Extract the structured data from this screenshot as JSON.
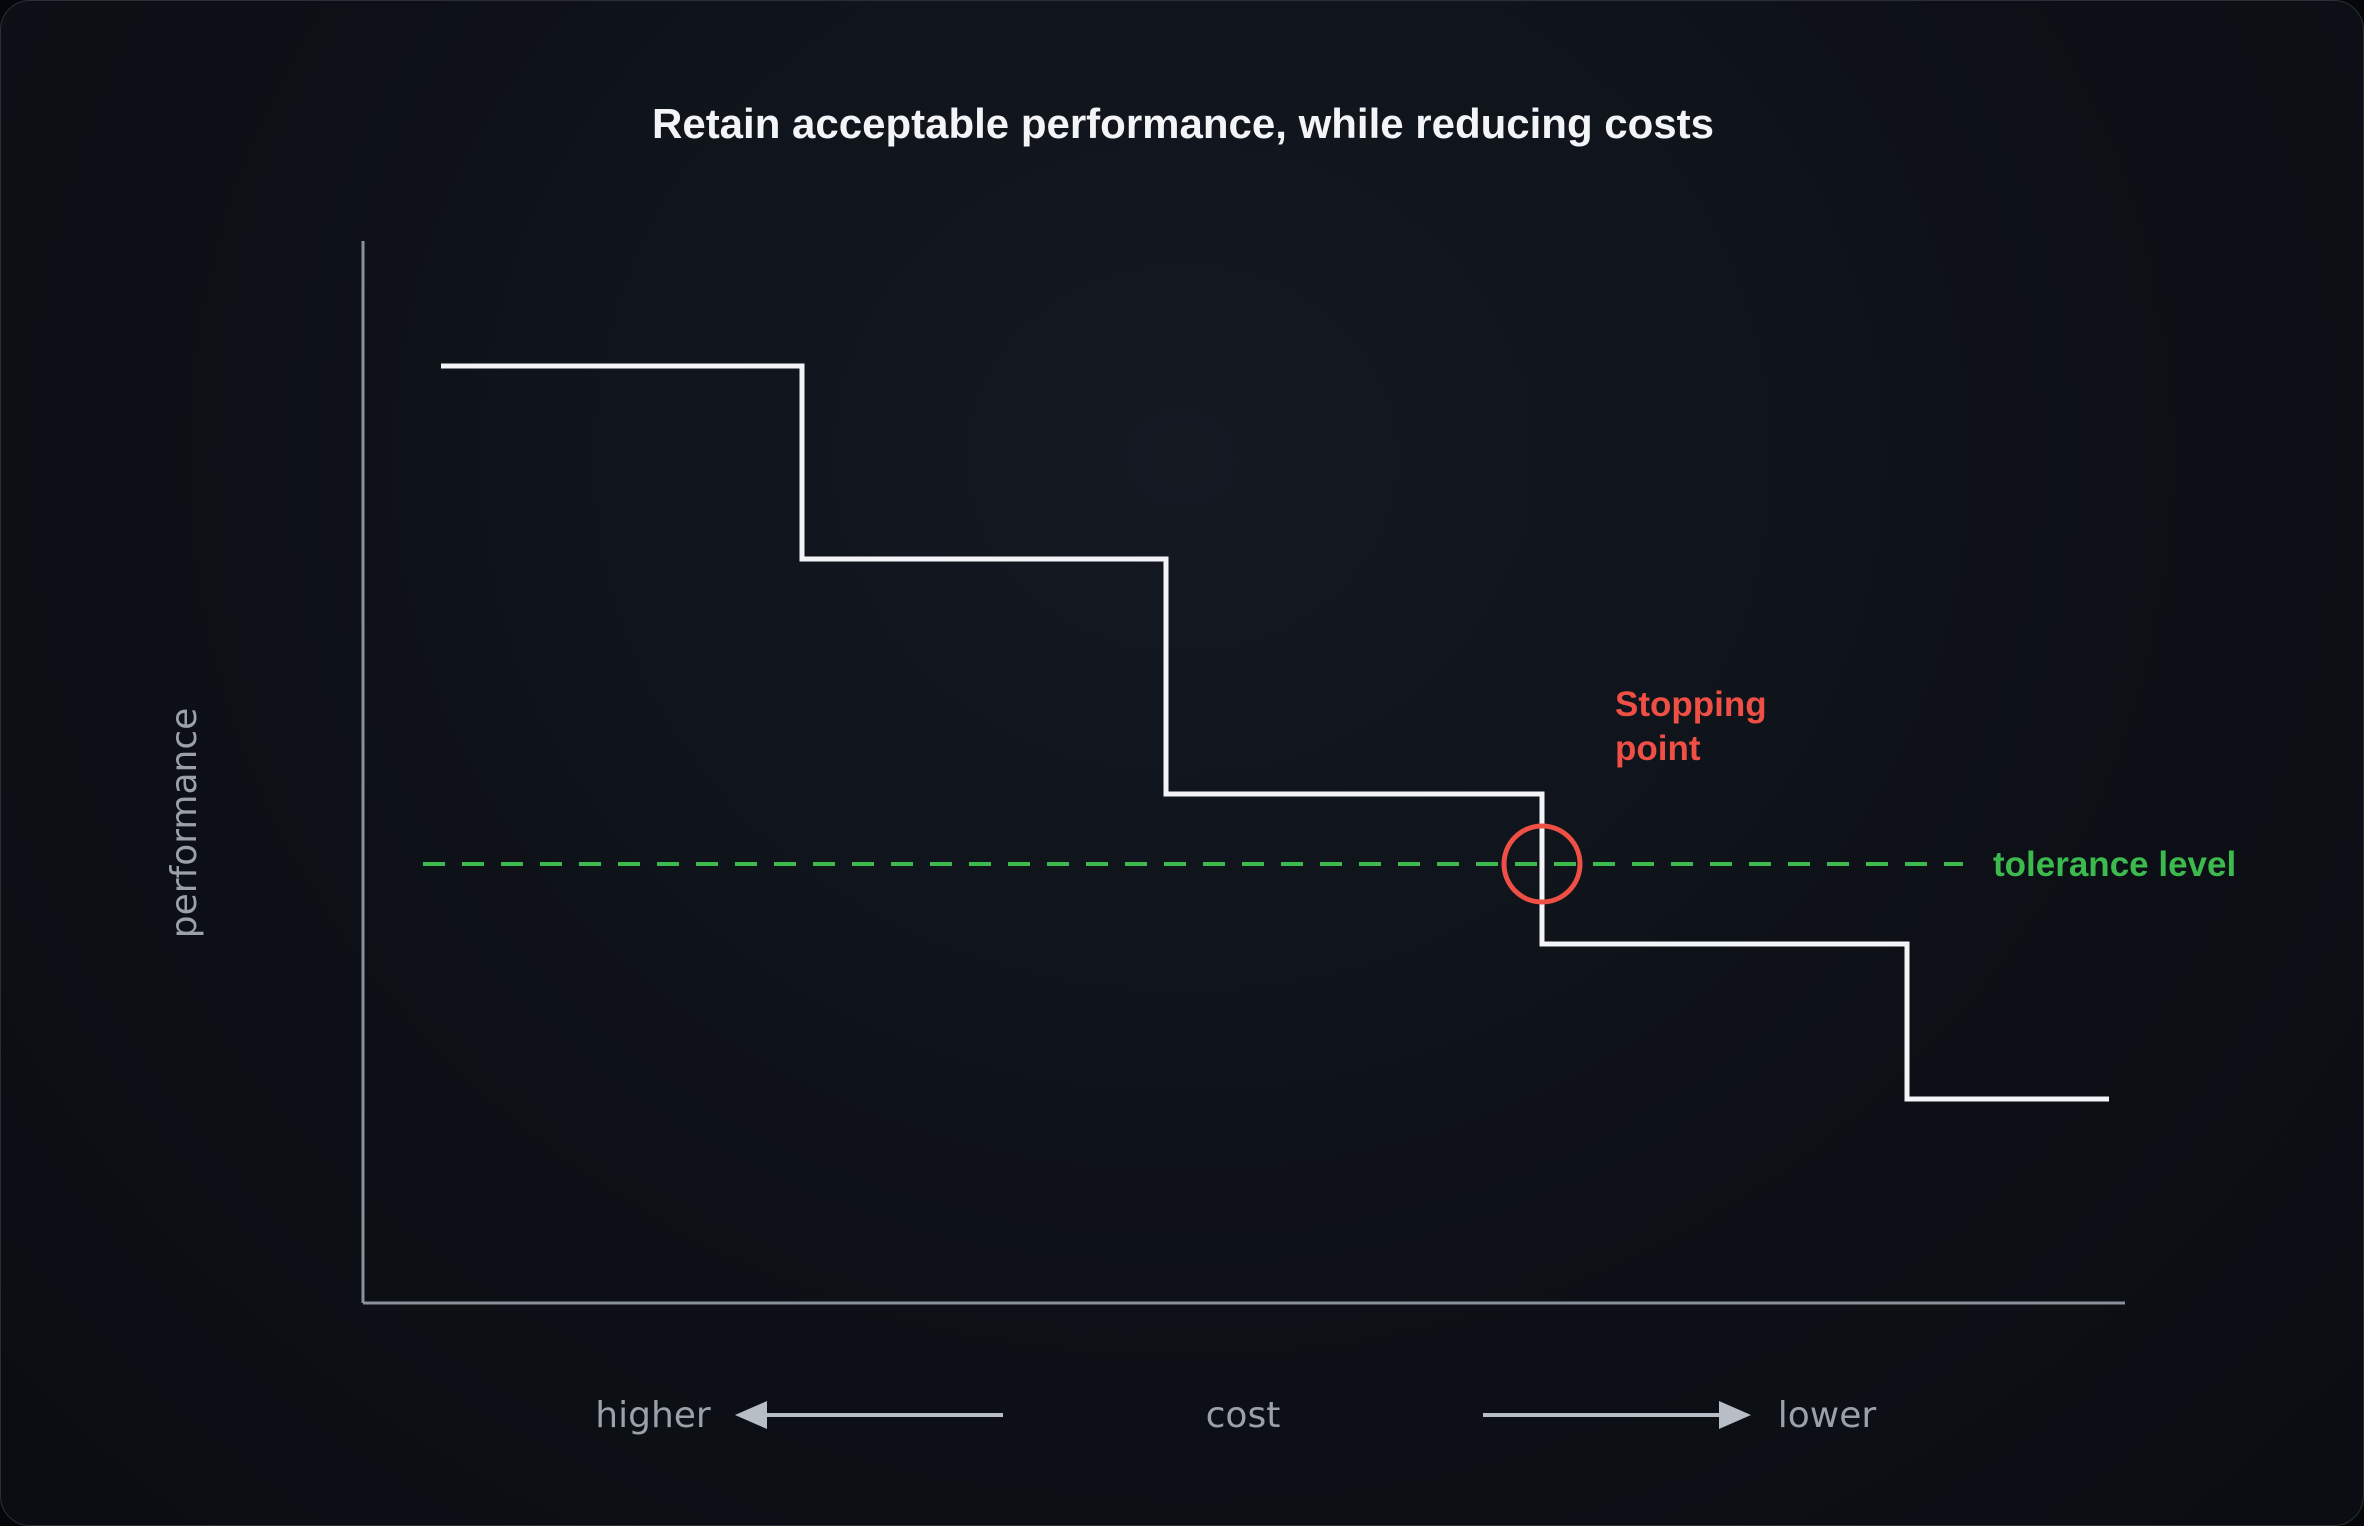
{
  "title": "Retain acceptable performance, while reducing costs",
  "y_axis_label": "performance",
  "x_axis": {
    "label": "cost",
    "left_label": "higher",
    "right_label": "lower"
  },
  "annotations": {
    "stopping_point_line1": "Stopping",
    "stopping_point_line2": "point",
    "tolerance_label": "tolerance level"
  },
  "colors": {
    "step_line": "#f2f4f7",
    "tolerance": "#3dba4e",
    "stopping_point": "#ef4f45",
    "axis": "#8a919b"
  },
  "chart_data": {
    "type": "line",
    "step_levels": [
      5,
      4,
      3,
      2,
      1
    ],
    "tolerance_level": 2.64,
    "stopping_point_step": 3
  }
}
